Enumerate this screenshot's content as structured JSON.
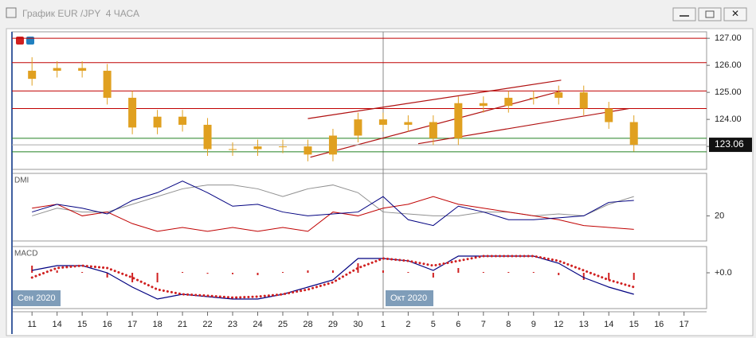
{
  "window": {
    "title": "График EUR /JPY  4 ЧАСА"
  },
  "period_labels": [
    "Сен 2020",
    "Окт 2020"
  ],
  "chart_data": [
    {
      "type": "candlestick",
      "color": "#e0a020",
      "x": [
        0,
        1,
        2,
        3,
        4,
        5,
        6,
        7,
        8,
        9,
        10,
        11,
        12,
        13,
        14,
        15,
        16,
        17,
        18,
        19,
        20,
        21,
        22,
        23,
        24
      ],
      "open": [
        125.5,
        125.8,
        125.9,
        125.8,
        124.8,
        123.7,
        124.1,
        123.8,
        122.9,
        122.9,
        123.0,
        123.0,
        122.7,
        123.4,
        124.0,
        123.8,
        123.9,
        123.3,
        124.6,
        124.5,
        124.8,
        124.8,
        125.0,
        124.4,
        123.9
      ],
      "high": [
        126.3,
        126.15,
        126.15,
        126.05,
        125.05,
        124.35,
        124.35,
        124.05,
        123.15,
        123.25,
        123.25,
        123.25,
        123.65,
        124.25,
        124.25,
        124.15,
        124.15,
        124.85,
        124.85,
        125.05,
        125.05,
        125.25,
        125.25,
        124.65,
        124.15
      ],
      "low": [
        125.25,
        125.55,
        125.55,
        124.55,
        123.45,
        123.45,
        123.55,
        122.65,
        122.65,
        122.65,
        122.75,
        122.45,
        122.45,
        123.15,
        123.55,
        123.55,
        123.05,
        123.05,
        124.25,
        124.25,
        124.55,
        124.55,
        124.15,
        123.65,
        122.81
      ],
      "close": [
        125.8,
        125.9,
        125.8,
        124.8,
        123.7,
        124.1,
        123.8,
        122.9,
        122.9,
        123.0,
        123.0,
        122.7,
        123.4,
        124.0,
        123.8,
        123.9,
        123.3,
        124.6,
        124.5,
        124.8,
        124.8,
        125.0,
        124.4,
        123.9,
        123.06
      ],
      "xlim": [
        -0.8,
        26.9
      ],
      "ylim": [
        122.15,
        127.24
      ],
      "yticks": [
        {
          "value": 123,
          "label": "123.00"
        },
        {
          "value": 124,
          "label": "124.00"
        },
        {
          "value": 125,
          "label": "125.00"
        },
        {
          "value": 126,
          "label": "126.00"
        },
        {
          "value": 127,
          "label": "127.00"
        }
      ],
      "levels": [
        {
          "value": 127.0,
          "color": "#c00000"
        },
        {
          "value": 126.1,
          "color": "#c00000"
        },
        {
          "value": 125.05,
          "color": "#c00000"
        },
        {
          "value": 124.4,
          "color": "#c00000"
        },
        {
          "value": 123.3,
          "color": "#208020"
        },
        {
          "value": 122.8,
          "color": "#208020"
        }
      ],
      "trendlines": [
        {
          "x": [
            11,
            21.1
          ],
          "y": [
            124.03,
            125.45
          ],
          "color": "#b01010"
        },
        {
          "x": [
            11.1,
            21.1
          ],
          "y": [
            122.6,
            125.05
          ],
          "color": "#b01010"
        },
        {
          "x": [
            15.4,
            23.8
          ],
          "y": [
            123.1,
            124.4
          ],
          "color": "#b01010"
        }
      ],
      "last_price": 123.06
    },
    {
      "type": "line",
      "title": "DMI",
      "x": [
        0,
        1,
        2,
        3,
        4,
        5,
        6,
        7,
        8,
        9,
        10,
        11,
        12,
        13,
        14,
        15,
        16,
        17,
        18,
        19,
        20,
        21,
        22,
        23,
        24
      ],
      "series": [
        {
          "color": "#909090",
          "values": [
            20,
            24,
            22,
            22,
            26,
            30,
            34,
            36,
            36,
            34,
            30,
            34,
            36,
            32,
            22,
            21,
            20,
            20,
            22,
            22,
            20,
            21,
            20,
            26,
            30
          ]
        },
        {
          "color": "#c00000",
          "values": [
            24,
            26,
            20,
            22,
            16,
            12,
            14,
            12,
            14,
            12,
            14,
            12,
            22,
            20,
            24,
            26,
            30,
            26,
            24,
            22,
            20,
            18,
            15,
            14,
            13
          ]
        },
        {
          "color": "#000080",
          "values": [
            22,
            26,
            24,
            21,
            28,
            32,
            38,
            32,
            25,
            26,
            22,
            20,
            21,
            22,
            30,
            18,
            15,
            25,
            22,
            18,
            18,
            19,
            20,
            27,
            28
          ]
        }
      ],
      "xlim": [
        -0.8,
        26.9
      ],
      "ylim": [
        7,
        42
      ],
      "yticks": [
        20
      ]
    },
    {
      "type": "macd",
      "title": "MACD",
      "x": [
        0,
        1,
        2,
        3,
        4,
        5,
        6,
        7,
        8,
        9,
        10,
        11,
        12,
        13,
        14,
        15,
        16,
        17,
        18,
        19,
        20,
        21,
        22,
        23,
        24
      ],
      "histogram": {
        "color": "#d02020",
        "values": [
          0.15,
          0.05,
          0,
          -0.1,
          -0.2,
          -0.2,
          0,
          -0.02,
          -0.03,
          -0.05,
          0,
          0.05,
          0.05,
          0.2,
          0.05,
          0,
          -0.1,
          0.1,
          0,
          0,
          0,
          -0.05,
          -0.15,
          -0.15,
          -0.15
        ]
      },
      "series": [
        {
          "color": "#000080",
          "style": "solid",
          "values": [
            0.05,
            0.15,
            0.15,
            0.0,
            -0.3,
            -0.55,
            -0.45,
            -0.5,
            -0.55,
            -0.55,
            -0.45,
            -0.3,
            -0.15,
            0.3,
            0.3,
            0.25,
            0.05,
            0.35,
            0.35,
            0.35,
            0.35,
            0.2,
            -0.1,
            -0.3,
            -0.45
          ]
        },
        {
          "color": "#d02020",
          "style": "dotted",
          "values": [
            -0.1,
            0.1,
            0.15,
            0.1,
            -0.1,
            -0.35,
            -0.45,
            -0.48,
            -0.52,
            -0.5,
            -0.45,
            -0.35,
            -0.2,
            0.1,
            0.3,
            0.25,
            0.15,
            0.25,
            0.35,
            0.35,
            0.35,
            0.25,
            0.05,
            -0.15,
            -0.3
          ]
        }
      ],
      "xlim": [
        -0.8,
        26.9
      ],
      "ylim": [
        -0.75,
        0.55
      ],
      "yticks": [
        {
          "value": 0,
          "label": "+0.0"
        }
      ],
      "xticks": [
        {
          "value": 0,
          "label": "11"
        },
        {
          "value": 1,
          "label": "14"
        },
        {
          "value": 2,
          "label": "15"
        },
        {
          "value": 3,
          "label": "16"
        },
        {
          "value": 4,
          "label": "17"
        },
        {
          "value": 5,
          "label": "18"
        },
        {
          "value": 6,
          "label": "21"
        },
        {
          "value": 7,
          "label": "22"
        },
        {
          "value": 8,
          "label": "23"
        },
        {
          "value": 9,
          "label": "24"
        },
        {
          "value": 10,
          "label": "25"
        },
        {
          "value": 11,
          "label": "28"
        },
        {
          "value": 12,
          "label": "29"
        },
        {
          "value": 13,
          "label": "30"
        },
        {
          "value": 14,
          "label": "1"
        },
        {
          "value": 15,
          "label": "2"
        },
        {
          "value": 16,
          "label": "5"
        },
        {
          "value": 17,
          "label": "6"
        },
        {
          "value": 18,
          "label": "7"
        },
        {
          "value": 19,
          "label": "8"
        },
        {
          "value": 20,
          "label": "9"
        },
        {
          "value": 21,
          "label": "12"
        },
        {
          "value": 22,
          "label": "13"
        },
        {
          "value": 23,
          "label": "14"
        },
        {
          "value": 24,
          "label": "15"
        },
        {
          "value": 25,
          "label": "16"
        },
        {
          "value": 26,
          "label": "17"
        }
      ]
    }
  ]
}
